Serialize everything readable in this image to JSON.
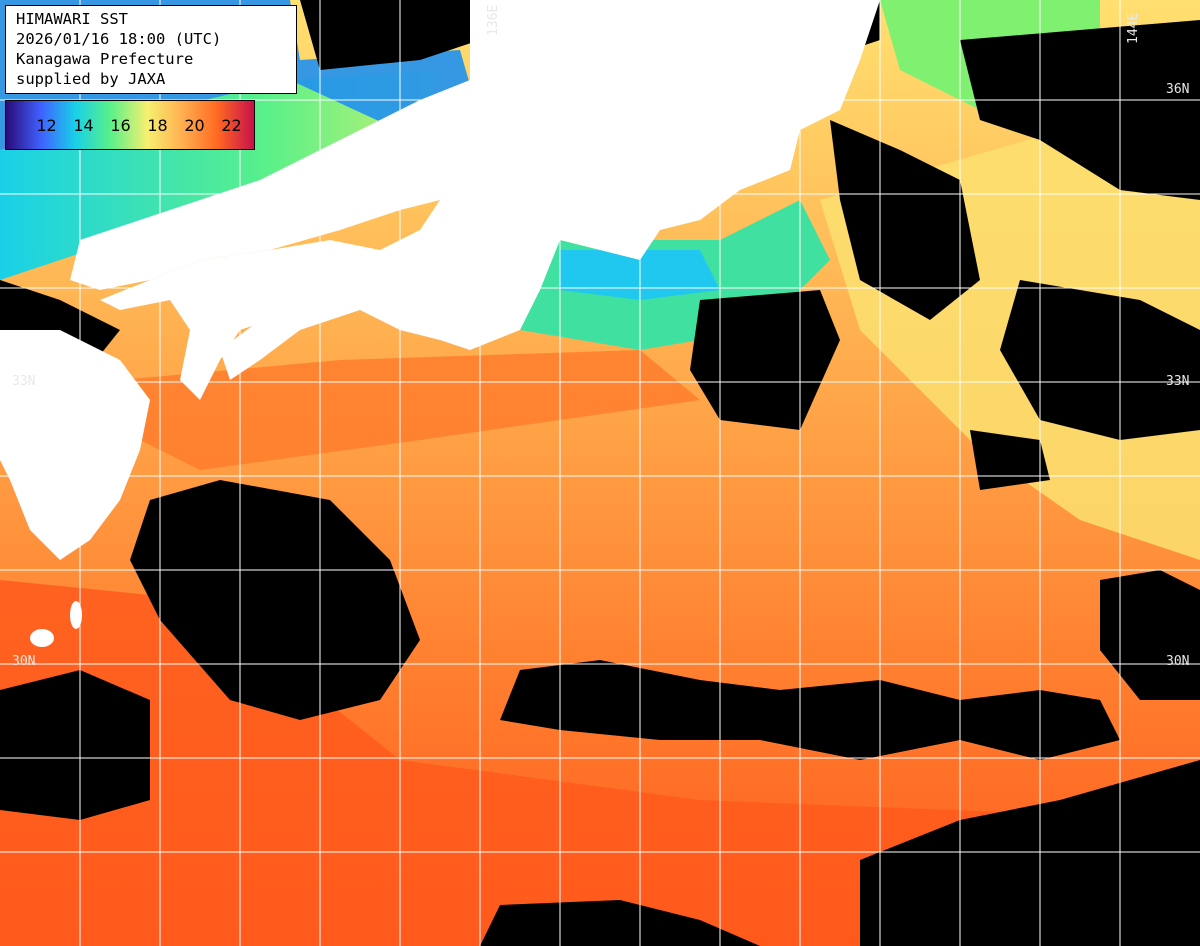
{
  "info": {
    "line1": "HIMAWARI SST",
    "line2": "2026/01/16 18:00 (UTC)",
    "line3": "Kanagawa Prefecture",
    "line4": "supplied by JAXA"
  },
  "legend": {
    "ticks": [
      "12",
      "14",
      "16",
      "18",
      "20",
      "22"
    ],
    "colors": [
      "#2a0a78",
      "#4060ff",
      "#19d0e8",
      "#58f08a",
      "#f6f070",
      "#ffb050",
      "#ff6a22",
      "#c8104a"
    ]
  },
  "grid_labels": {
    "lon_136": "136E",
    "lon_144": "144E",
    "lat_36": "36N",
    "lat_33_left": "33N",
    "lat_33_right": "33N",
    "lat_30_left": "30N",
    "lat_30_right": "30N"
  },
  "colors": {
    "land": "#ffffff",
    "cloud": "#000000",
    "grid": "#ffffff",
    "sea_warm": "#ff6a22",
    "sea_mild": "#ffb050",
    "sea_cool": "#58f08a",
    "sea_cold": "#19d0e8"
  }
}
